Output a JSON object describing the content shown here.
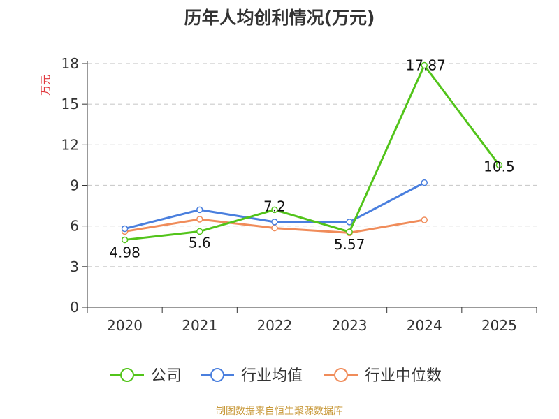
{
  "chart_data": {
    "type": "line",
    "title": "历年人均创利情况(万元)",
    "ylabel": "万元",
    "xlabel": "",
    "categories": [
      "2020",
      "2021",
      "2022",
      "2023",
      "2024",
      "2025"
    ],
    "ylim": [
      0,
      18
    ],
    "yticks": [
      0,
      3,
      6,
      9,
      12,
      15,
      18
    ],
    "grid": true,
    "legend_position": "bottom",
    "series": [
      {
        "name": "公司",
        "color": "#52c41a",
        "values": [
          4.98,
          5.6,
          7.2,
          5.57,
          17.87,
          10.5
        ],
        "labels": [
          "4.98",
          "5.6",
          "7.2",
          "5.57",
          "17.87",
          "10.5"
        ]
      },
      {
        "name": "行业均值",
        "color": "#4a7fde",
        "values": [
          5.8,
          7.2,
          6.3,
          6.3,
          9.2,
          null
        ]
      },
      {
        "name": "行业中位数",
        "color": "#f08c5a",
        "values": [
          5.6,
          6.5,
          5.85,
          5.5,
          6.45,
          null
        ]
      }
    ]
  },
  "ylabel_color": "#e0393e",
  "source": "制图数据来自恒生聚源数据库"
}
